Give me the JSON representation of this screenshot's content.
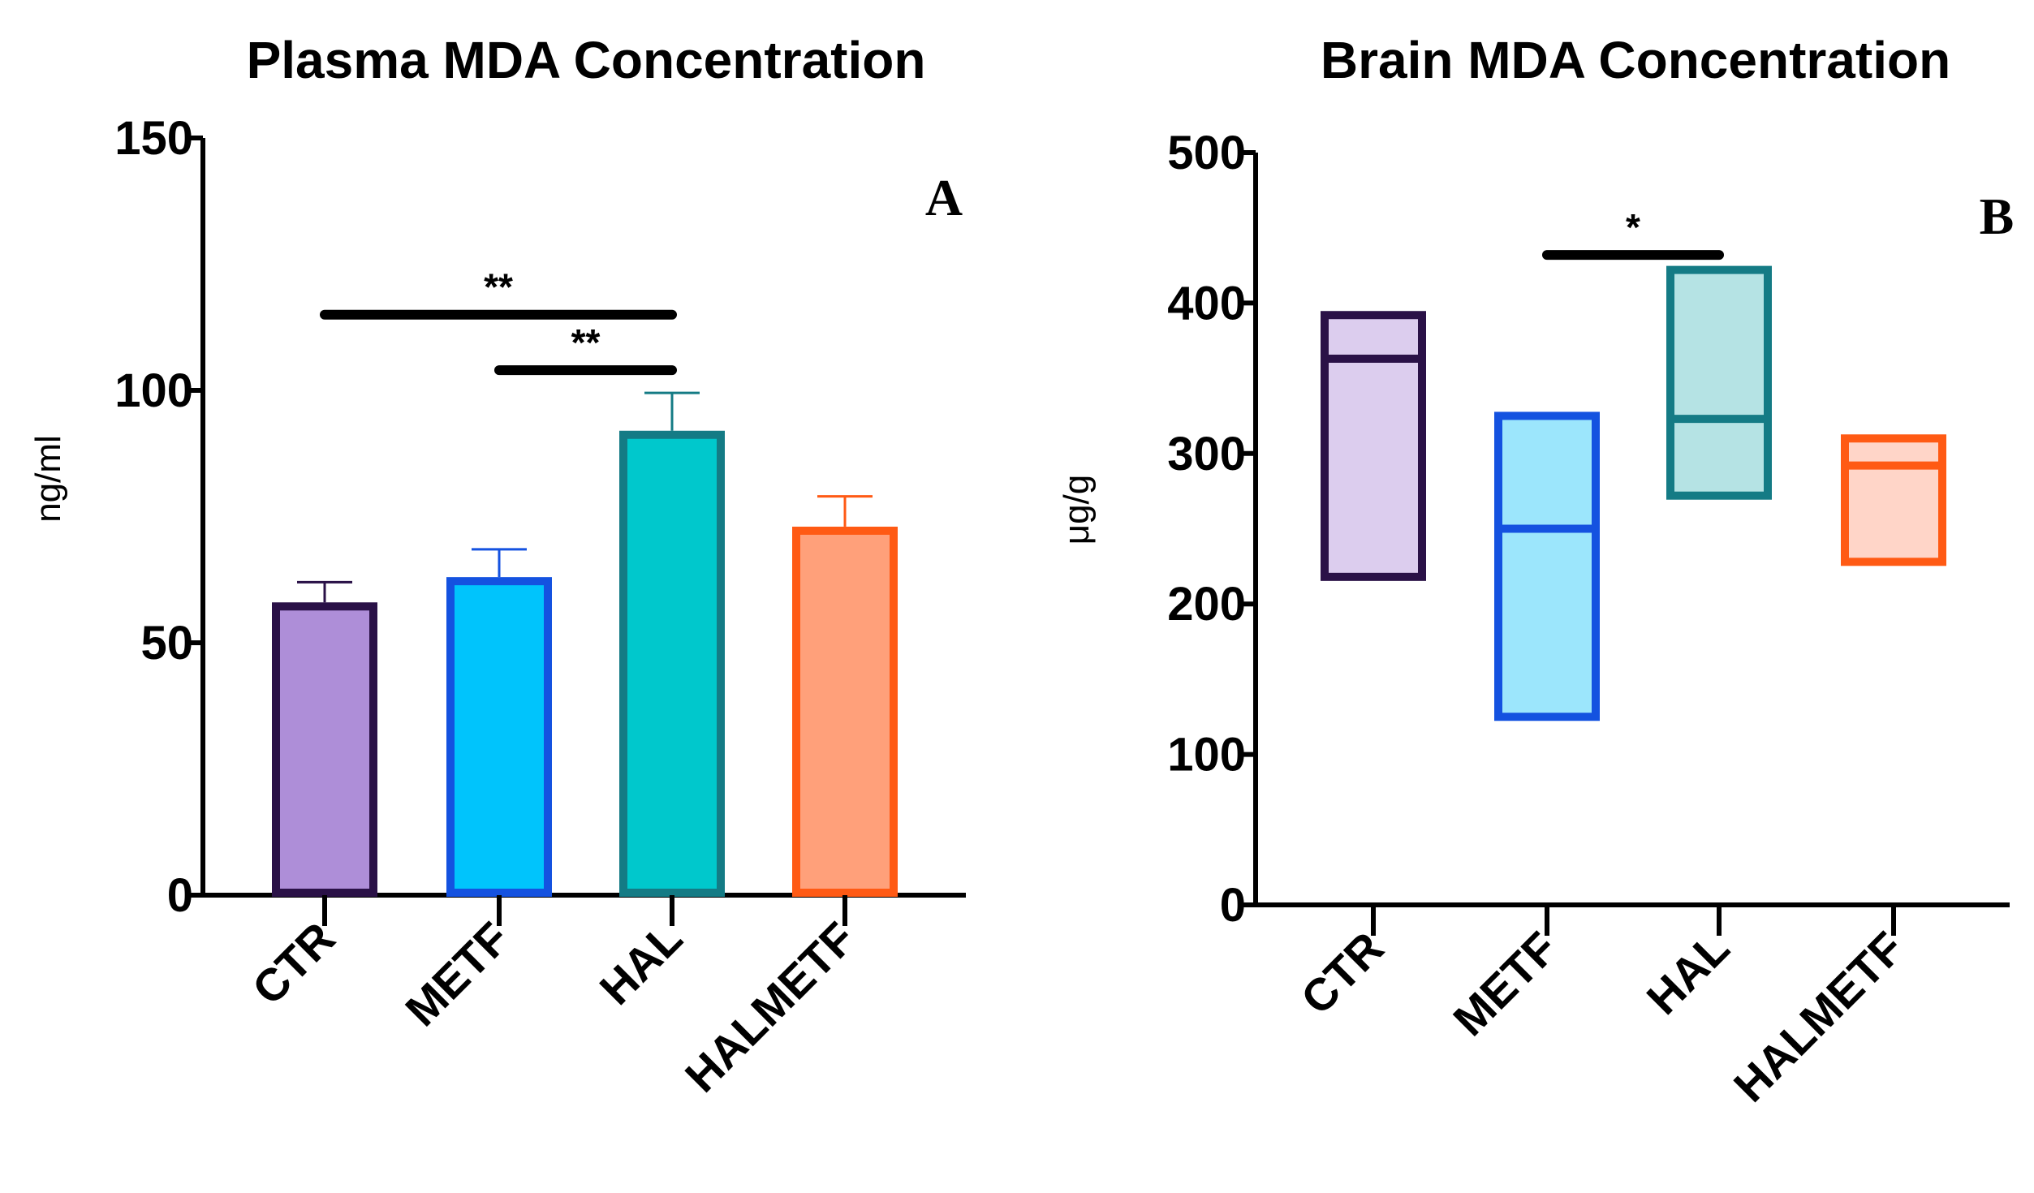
{
  "chart_data": [
    {
      "type": "bar",
      "title": "Plasma MDA Concentration",
      "panel": "A",
      "xlabel": "",
      "ylabel": "ng/ml",
      "ylim": [
        0,
        150
      ],
      "yticks": [
        0,
        50,
        100,
        150
      ],
      "categories": [
        "CTR",
        "METF",
        "HAL",
        "HALMETF"
      ],
      "values": [
        58,
        63,
        92,
        73
      ],
      "errors": [
        4,
        5.5,
        7.5,
        6
      ],
      "colors": {
        "fill": [
          "#ae8ed8",
          "#00c4fc",
          "#00c8cc",
          "#ffa07a"
        ],
        "stroke": [
          "#2a1147",
          "#1452e0",
          "#147b85",
          "#ff5a14"
        ]
      },
      "significance": [
        {
          "from": "CTR",
          "to": "HAL",
          "y": 115,
          "label": "**"
        },
        {
          "from": "METF",
          "to": "HAL",
          "y": 104,
          "label": "**"
        }
      ]
    },
    {
      "type": "box",
      "title": "Brain MDA Concentration",
      "panel": "B",
      "xlabel": "",
      "ylabel": "μg/g",
      "ylim": [
        0,
        500
      ],
      "yticks": [
        0,
        100,
        200,
        300,
        400,
        500
      ],
      "categories": [
        "CTR",
        "METF",
        "HAL",
        "HALMETF"
      ],
      "boxes": [
        {
          "low": 218,
          "high": 392,
          "median": 363
        },
        {
          "low": 125,
          "high": 325,
          "median": 250
        },
        {
          "low": 272,
          "high": 422,
          "median": 323
        },
        {
          "low": 228,
          "high": 310,
          "median": 292
        }
      ],
      "colors": {
        "fill": [
          "#dccdee",
          "#9ce6fc",
          "#b5e3e4",
          "#ffd5c8"
        ],
        "stroke": [
          "#2a1147",
          "#1452e0",
          "#147b85",
          "#ff5a14"
        ]
      },
      "significance": [
        {
          "from": "METF",
          "to": "HAL",
          "y": 432,
          "label": "*"
        }
      ]
    }
  ]
}
